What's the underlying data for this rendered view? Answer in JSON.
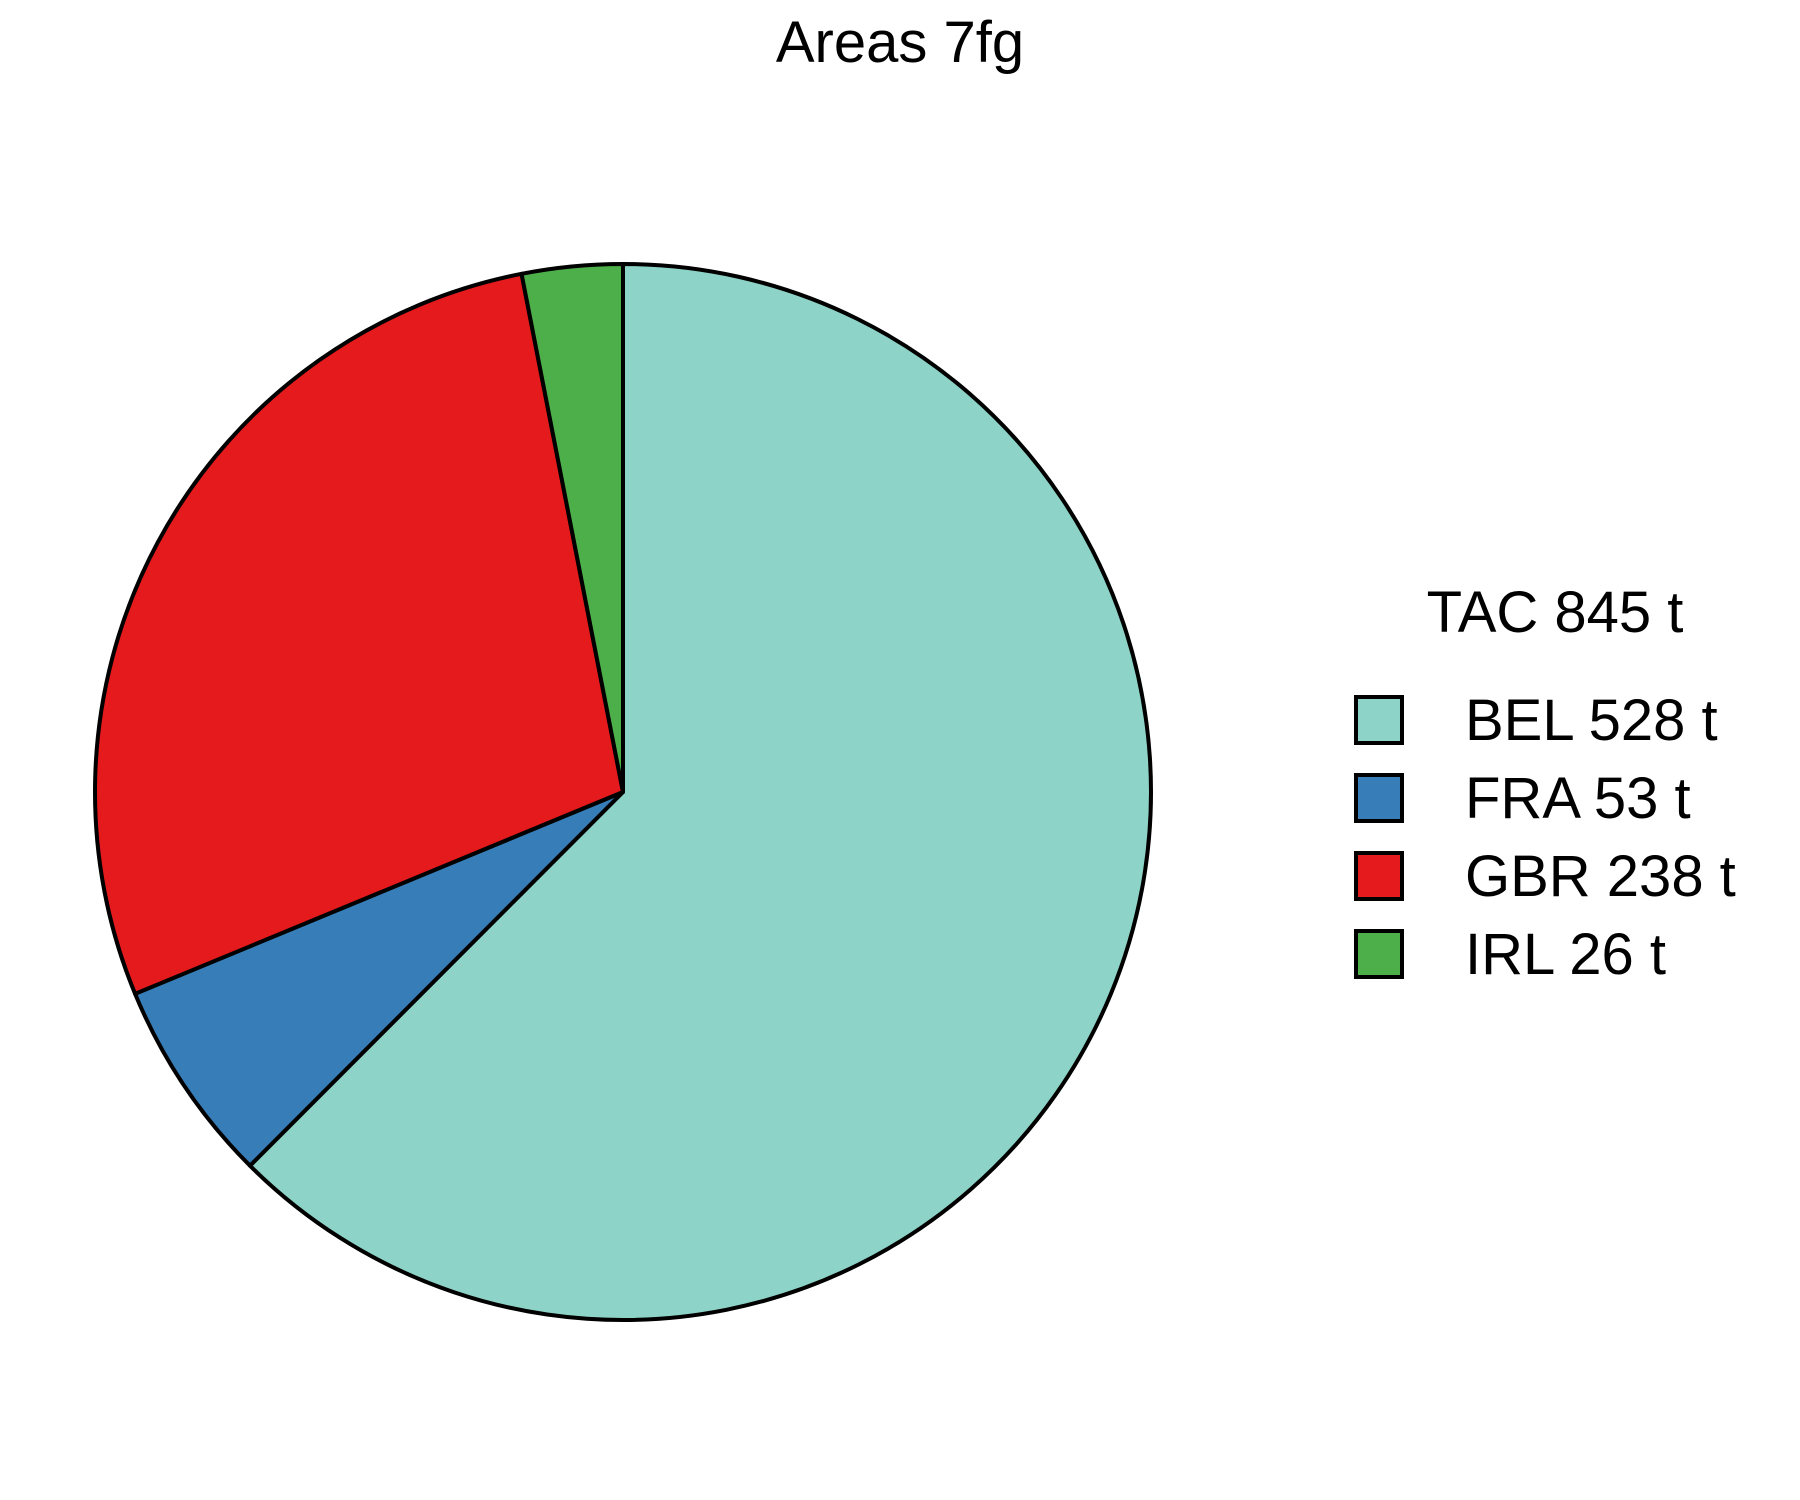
{
  "chart_data": {
    "type": "pie",
    "title": "Areas 7fg",
    "legend_title": "TAC 845 t",
    "legend_position": "right",
    "start_angle": "12 o'clock",
    "direction": "clockwise",
    "slices": [
      {
        "label": "BEL 528 t",
        "value": 528,
        "color": "#8DD3C7"
      },
      {
        "label": "FRA 53 t",
        "value": 53,
        "color": "#377EB8"
      },
      {
        "label": "GBR 238 t",
        "value": 238,
        "color": "#E41A1C"
      },
      {
        "label": "IRL 26 t",
        "value": 26,
        "color": "#4DAF4A"
      }
    ]
  }
}
